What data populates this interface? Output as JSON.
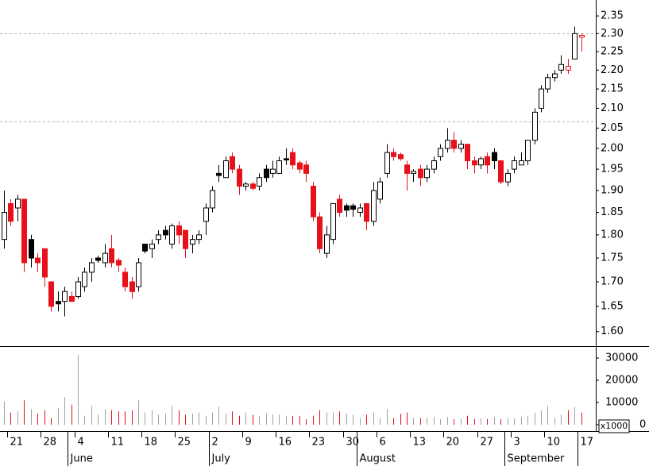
{
  "chart_data": {
    "type": "candlestick",
    "categories": [
      null,
      "21",
      null,
      null,
      null,
      null,
      "28",
      null,
      null,
      null,
      null,
      "4",
      null,
      null,
      null,
      null,
      "11",
      null,
      null,
      null,
      null,
      "18",
      null,
      null,
      null,
      null,
      "25",
      null,
      null,
      null,
      null,
      "2",
      null,
      null,
      null,
      null,
      "9",
      null,
      null,
      null,
      null,
      "16",
      null,
      null,
      null,
      null,
      "23",
      null,
      null,
      null,
      null,
      "30",
      null,
      null,
      null,
      null,
      "6",
      null,
      null,
      null,
      null,
      "13",
      null,
      null,
      null,
      null,
      "20",
      null,
      null,
      null,
      null,
      "27",
      null,
      null,
      null,
      null,
      "3",
      null,
      null,
      null,
      null,
      "10",
      null,
      null,
      null,
      null,
      "17"
    ],
    "months": [
      null,
      null,
      null,
      null,
      null,
      null,
      null,
      null,
      null,
      null,
      "June",
      null,
      null,
      null,
      null,
      null,
      null,
      null,
      null,
      null,
      null,
      null,
      null,
      null,
      null,
      null,
      null,
      null,
      null,
      null,
      null,
      "July",
      null,
      null,
      null,
      null,
      null,
      null,
      null,
      null,
      null,
      null,
      null,
      null,
      null,
      null,
      null,
      null,
      null,
      null,
      null,
      null,
      null,
      "August",
      null,
      null,
      null,
      null,
      null,
      null,
      null,
      null,
      null,
      null,
      null,
      null,
      null,
      null,
      null,
      null,
      null,
      null,
      null,
      null,
      null,
      "September",
      null,
      null,
      null,
      null,
      null,
      null,
      null,
      null,
      null,
      null
    ],
    "open": [
      1.79,
      1.87,
      1.86,
      1.88,
      1.79,
      1.75,
      1.77,
      1.7,
      1.66,
      1.66,
      1.67,
      1.67,
      1.69,
      1.72,
      1.75,
      1.74,
      1.77,
      1.745,
      1.72,
      1.7,
      1.69,
      1.78,
      1.77,
      1.79,
      1.81,
      1.78,
      1.82,
      1.81,
      1.78,
      1.79,
      1.83,
      1.86,
      1.94,
      1.93,
      1.98,
      1.95,
      1.91,
      1.915,
      1.91,
      1.95,
      1.94,
      1.94,
      1.975,
      1.99,
      1.965,
      1.96,
      1.91,
      1.84,
      1.76,
      1.79,
      1.88,
      1.865,
      1.865,
      1.85,
      1.87,
      1.83,
      1.88,
      1.94,
      1.99,
      1.985,
      1.96,
      1.94,
      1.95,
      1.93,
      1.95,
      1.98,
      2.0,
      2.02,
      2.0,
      2.01,
      1.97,
      1.96,
      1.98,
      1.99,
      1.97,
      1.92,
      1.95,
      1.96,
      1.97,
      2.02,
      2.1,
      2.15,
      2.18,
      2.2,
      2.2,
      2.23,
      2.29
    ],
    "high": [
      1.9,
      1.88,
      1.89,
      1.88,
      1.8,
      1.76,
      1.77,
      1.7,
      1.68,
      1.69,
      1.68,
      1.71,
      1.73,
      1.75,
      1.755,
      1.78,
      1.8,
      1.75,
      1.73,
      1.71,
      1.75,
      1.78,
      1.79,
      1.81,
      1.82,
      1.825,
      1.83,
      1.81,
      1.8,
      1.81,
      1.87,
      1.91,
      1.96,
      1.98,
      1.99,
      1.96,
      1.92,
      1.92,
      1.94,
      1.96,
      1.97,
      1.98,
      2.0,
      2.0,
      1.97,
      1.97,
      1.92,
      1.85,
      1.82,
      1.87,
      1.89,
      1.87,
      1.87,
      1.87,
      1.87,
      1.92,
      1.93,
      2.01,
      2.0,
      1.99,
      1.97,
      1.95,
      1.96,
      1.96,
      1.98,
      2.01,
      2.05,
      2.04,
      2.02,
      2.01,
      1.98,
      1.98,
      1.99,
      2.0,
      1.97,
      1.95,
      1.98,
      1.99,
      2.02,
      2.1,
      2.16,
      2.19,
      2.2,
      2.24,
      2.23,
      2.32,
      2.3
    ],
    "low": [
      1.77,
      1.82,
      1.83,
      1.72,
      1.73,
      1.72,
      1.69,
      1.64,
      1.64,
      1.63,
      1.66,
      1.665,
      1.68,
      1.7,
      1.74,
      1.73,
      1.73,
      1.72,
      1.68,
      1.665,
      1.68,
      1.76,
      1.75,
      1.78,
      1.79,
      1.77,
      1.78,
      1.75,
      1.76,
      1.78,
      1.8,
      1.85,
      1.92,
      1.93,
      1.94,
      1.89,
      1.9,
      1.9,
      1.9,
      1.92,
      1.93,
      1.94,
      1.96,
      1.95,
      1.94,
      1.92,
      1.83,
      1.76,
      1.75,
      1.78,
      1.84,
      1.84,
      1.84,
      1.84,
      1.81,
      1.82,
      1.87,
      1.93,
      1.97,
      1.97,
      1.9,
      1.92,
      1.91,
      1.92,
      1.94,
      1.97,
      1.99,
      1.99,
      1.99,
      1.95,
      1.94,
      1.95,
      1.94,
      1.95,
      1.915,
      1.91,
      1.94,
      1.96,
      1.96,
      2.01,
      2.09,
      2.14,
      2.17,
      2.19,
      2.19,
      2.23,
      2.25
    ],
    "close": [
      1.85,
      1.83,
      1.88,
      1.74,
      1.75,
      1.74,
      1.71,
      1.65,
      1.655,
      1.68,
      1.66,
      1.7,
      1.72,
      1.74,
      1.745,
      1.76,
      1.74,
      1.735,
      1.69,
      1.68,
      1.74,
      1.765,
      1.78,
      1.8,
      1.8,
      1.82,
      1.8,
      1.77,
      1.79,
      1.8,
      1.86,
      1.9,
      1.935,
      1.97,
      1.95,
      1.91,
      1.915,
      1.905,
      1.93,
      1.93,
      1.95,
      1.97,
      1.972,
      1.96,
      1.95,
      1.94,
      1.84,
      1.77,
      1.8,
      1.87,
      1.85,
      1.855,
      1.857,
      1.86,
      1.83,
      1.9,
      1.92,
      1.99,
      1.98,
      1.975,
      1.94,
      1.945,
      1.93,
      1.95,
      1.97,
      2.0,
      2.02,
      2.0,
      2.01,
      1.97,
      1.96,
      1.975,
      1.96,
      1.97,
      1.92,
      1.94,
      1.97,
      1.97,
      2.02,
      2.09,
      2.15,
      2.18,
      2.19,
      2.215,
      2.21,
      2.3,
      2.295
    ],
    "volume": [
      10500,
      5500,
      6000,
      11000,
      7000,
      5000,
      6500,
      3000,
      7500,
      12500,
      9000,
      31500,
      4000,
      8500,
      4500,
      7000,
      6500,
      6000,
      6000,
      6500,
      11000,
      5500,
      6500,
      4500,
      5000,
      8500,
      6500,
      4500,
      5000,
      5500,
      4000,
      5500,
      8000,
      5000,
      6000,
      4000,
      5500,
      4500,
      4000,
      5000,
      4500,
      4500,
      4000,
      4000,
      4000,
      2500,
      4000,
      6500,
      5500,
      5500,
      6000,
      5000,
      4500,
      3000,
      4500,
      5500,
      3000,
      7000,
      3000,
      5000,
      5500,
      3000,
      3000,
      3000,
      3500,
      2500,
      3500,
      2500,
      2500,
      4000,
      2500,
      3000,
      2500,
      3500,
      2500,
      3000,
      3000,
      3500,
      4000,
      5500,
      6500,
      8500,
      3000,
      4500,
      6500,
      8000,
      5500
    ],
    "log_scale": true,
    "ylim": [
      1.572,
      2.396
    ],
    "yticks": [
      1.6,
      1.65,
      1.7,
      1.75,
      1.8,
      1.85,
      1.9,
      1.95,
      2.0,
      2.05,
      2.1,
      2.15,
      2.2,
      2.25,
      2.3,
      2.35
    ],
    "ytick_decimals": 2,
    "hlines": [
      2.3,
      2.066
    ],
    "volume_ylim": [
      0,
      35000
    ],
    "volume_yticks": [
      0,
      10000,
      20000,
      30000
    ],
    "volume_unit": "x1000",
    "up_color": "#000000",
    "down_color": "#e8101a",
    "volume_color": "#a0a0a0"
  }
}
